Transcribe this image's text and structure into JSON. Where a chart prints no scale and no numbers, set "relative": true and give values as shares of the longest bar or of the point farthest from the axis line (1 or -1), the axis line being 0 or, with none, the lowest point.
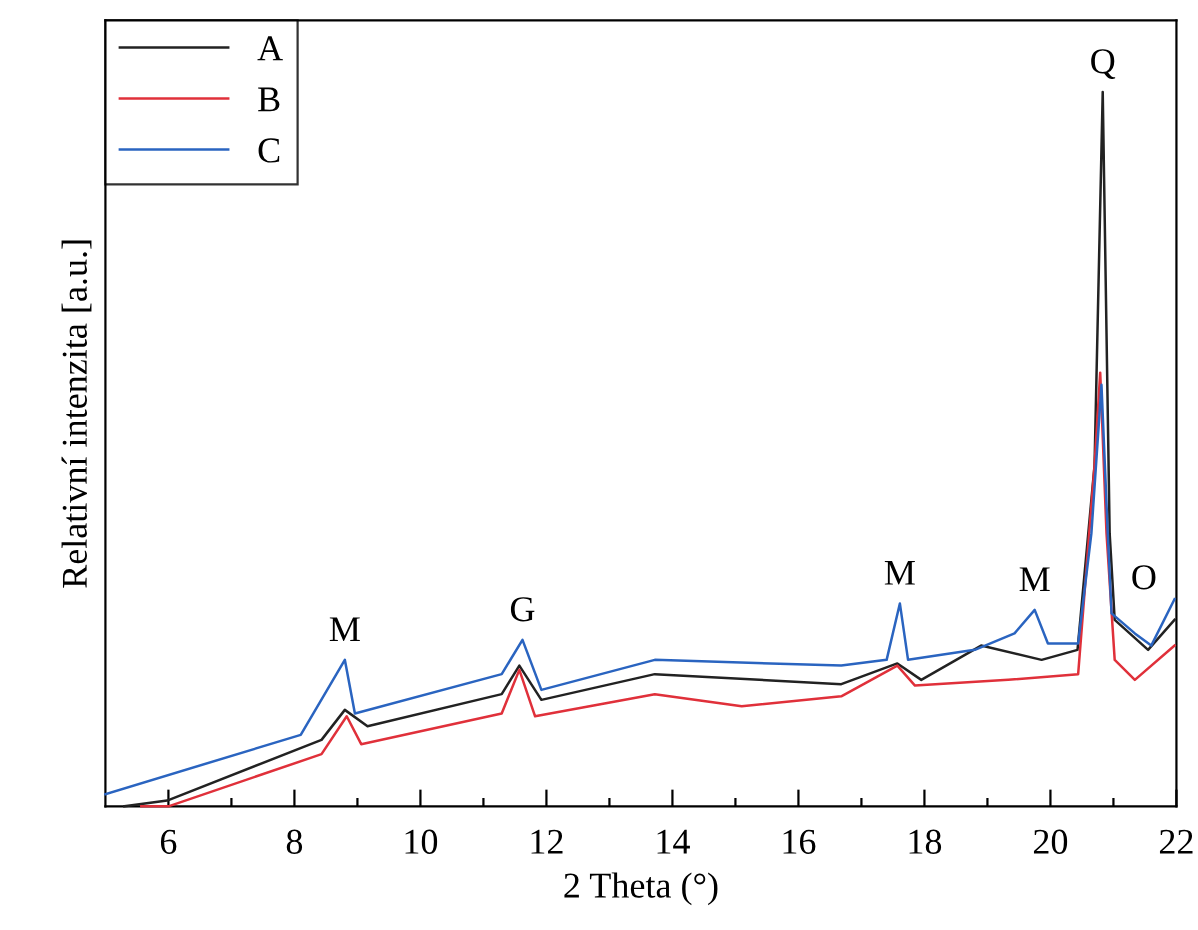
{
  "chart_data": {
    "type": "line",
    "relative": true,
    "xlabel": "2 Theta (°)",
    "ylabel": "Relativní intenzita [a.u.]",
    "xlim": [
      5,
      22
    ],
    "xticks": [
      6,
      {
        "value": 7,
        "label": null
      },
      8,
      {
        "value": 9,
        "label": null
      },
      10,
      {
        "value": 11,
        "label": null
      },
      12,
      {
        "value": 13,
        "label": null
      },
      14,
      {
        "value": 15,
        "label": null
      },
      16,
      {
        "value": 17,
        "label": null
      },
      18,
      {
        "value": 19,
        "label": null
      },
      20,
      {
        "value": 21,
        "label": null
      },
      22
    ],
    "grid": false,
    "legend": "top left",
    "line_style": "solid",
    "marker": "none",
    "series": [
      {
        "name": "A",
        "color": "#222222",
        "x": [
          5.3,
          5.98,
          8.43,
          8.8,
          9.16,
          11.29,
          11.57,
          11.92,
          13.72,
          16.68,
          17.57,
          17.95,
          18.9,
          19.86,
          20.43,
          20.7,
          20.83,
          20.89,
          20.94,
          21.02,
          21.55,
          21.97
        ],
        "values": [
          0.0,
          0.008,
          0.093,
          0.135,
          0.112,
          0.157,
          0.197,
          0.149,
          0.185,
          0.171,
          0.2,
          0.177,
          0.225,
          0.205,
          0.219,
          0.477,
          1.0,
          0.663,
          0.382,
          0.261,
          0.219,
          0.261
        ]
      },
      {
        "name": "B",
        "color": "#e0303a",
        "x": [
          5.57,
          6.0,
          8.43,
          8.83,
          9.06,
          11.29,
          11.57,
          11.82,
          13.72,
          15.1,
          16.68,
          17.57,
          17.85,
          19.33,
          20.44,
          20.7,
          20.79,
          20.89,
          21.02,
          21.34,
          21.97
        ],
        "values": [
          0.0,
          0.0,
          0.073,
          0.126,
          0.087,
          0.13,
          0.191,
          0.126,
          0.157,
          0.14,
          0.154,
          0.197,
          0.169,
          0.177,
          0.185,
          0.477,
          0.607,
          0.382,
          0.205,
          0.177,
          0.225
        ]
      },
      {
        "name": "C",
        "color": "#2a64c0",
        "x": [
          5.0,
          8.1,
          8.8,
          8.96,
          11.29,
          11.62,
          11.92,
          13.72,
          16.68,
          17.4,
          17.61,
          17.74,
          18.8,
          19.43,
          19.75,
          19.96,
          20.44,
          20.65,
          20.81,
          20.91,
          20.97,
          21.34,
          21.6,
          21.97
        ],
        "values": [
          0.017,
          0.1,
          0.205,
          0.13,
          0.185,
          0.233,
          0.163,
          0.205,
          0.197,
          0.205,
          0.284,
          0.205,
          0.219,
          0.242,
          0.275,
          0.228,
          0.228,
          0.382,
          0.59,
          0.382,
          0.27,
          0.242,
          0.225,
          0.29
        ]
      }
    ],
    "annotations": [
      {
        "text": "M",
        "x": 8.8,
        "y": 0.205
      },
      {
        "text": "G",
        "x": 11.62,
        "y": 0.233
      },
      {
        "text": "M",
        "x": 17.61,
        "y": 0.284
      },
      {
        "text": "M",
        "x": 19.75,
        "y": 0.275
      },
      {
        "text": "Q",
        "x": 20.83,
        "y": 1.0
      },
      {
        "text": "O",
        "x": 21.1,
        "y": 0.27
      }
    ]
  }
}
